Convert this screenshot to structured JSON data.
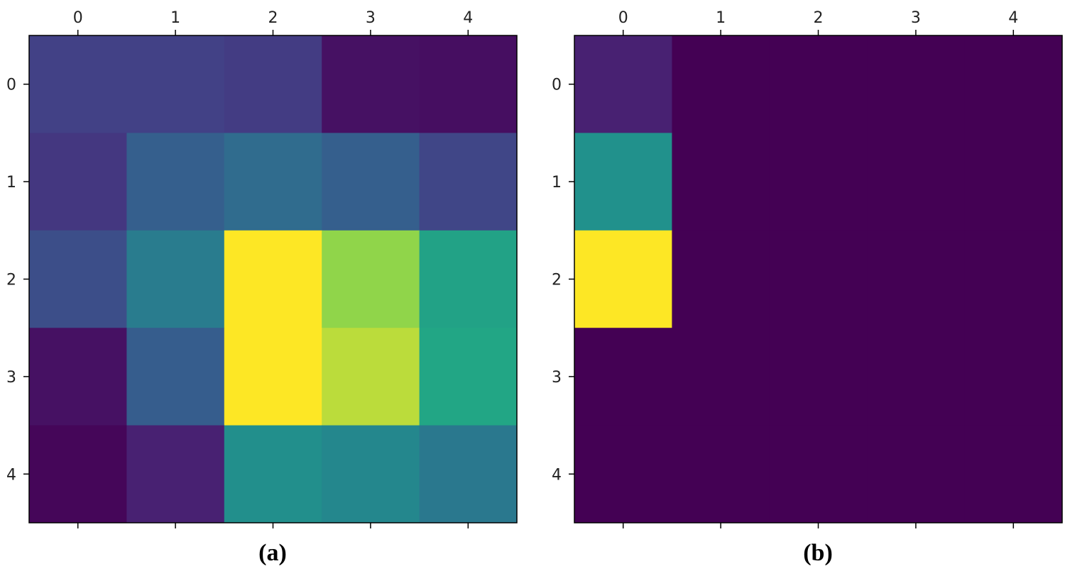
{
  "chart_data": [
    {
      "type": "heatmap",
      "caption": "(a)",
      "x_ticks": [
        "0",
        "1",
        "2",
        "3",
        "4"
      ],
      "y_ticks": [
        "0",
        "1",
        "2",
        "3",
        "4"
      ],
      "x_tick_position": "top",
      "colormap": "viridis",
      "value_range": [
        0,
        1
      ],
      "values": [
        [
          0.24,
          0.24,
          0.22,
          0.06,
          0.05
        ],
        [
          0.2,
          0.38,
          0.44,
          0.38,
          0.26
        ],
        [
          0.3,
          0.52,
          1.0,
          0.9,
          0.72
        ],
        [
          0.06,
          0.37,
          1.0,
          0.94,
          0.74
        ],
        [
          0.02,
          0.12,
          0.62,
          0.58,
          0.5
        ]
      ],
      "grid": false
    },
    {
      "type": "heatmap",
      "caption": "(b)",
      "x_ticks": [
        "0",
        "1",
        "2",
        "3",
        "4"
      ],
      "y_ticks": [
        "0",
        "1",
        "2",
        "3",
        "4"
      ],
      "x_tick_position": "top",
      "colormap": "viridis",
      "value_range": [
        0,
        1
      ],
      "values": [
        [
          0.12,
          0.0,
          0.0,
          0.0,
          0.0
        ],
        [
          0.63,
          0.0,
          0.0,
          0.0,
          0.0
        ],
        [
          1.0,
          0.0,
          0.0,
          0.0,
          0.0
        ],
        [
          0.0,
          0.0,
          0.0,
          0.0,
          0.0
        ],
        [
          0.0,
          0.0,
          0.0,
          0.0,
          0.0
        ]
      ],
      "grid": false
    }
  ]
}
